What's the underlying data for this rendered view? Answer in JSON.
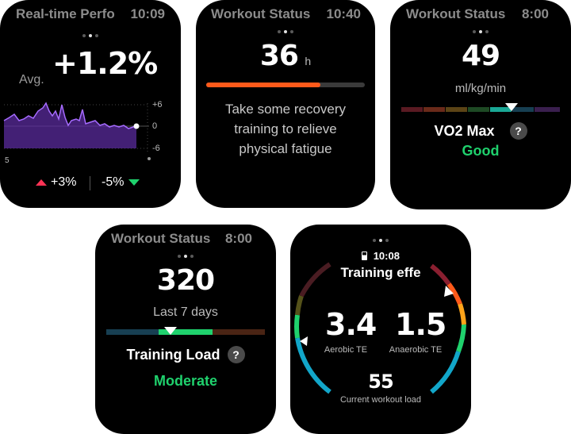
{
  "watch1": {
    "title": "Real-time Perfo",
    "time": "10:09",
    "value": "+1.2%",
    "avg_label": "Avg.",
    "y_ticks": [
      "+6",
      "0",
      "-6"
    ],
    "x_tick": "5",
    "up_value": "+3%",
    "down_value": "-5%",
    "colors": {
      "line": "#9f5cff",
      "up": "#ff3355",
      "down": "#1fd16d"
    }
  },
  "watch2": {
    "title": "Workout Status",
    "time": "10:40",
    "value": "36",
    "unit": "h",
    "progress_fraction": 0.72,
    "message_lines": [
      "Take some recovery",
      "training to relieve",
      "physical fatigue"
    ],
    "colors": {
      "fill": "#ff5a1a"
    }
  },
  "watch3": {
    "title": "Workout Status",
    "time": "8:00",
    "value": "49",
    "unit": "ml/kg/min",
    "label": "VO2 Max",
    "help": "?",
    "level": "Good",
    "colors": {
      "level": "#1fd16d"
    }
  },
  "watch4": {
    "title": "Workout Status",
    "time": "8:00",
    "value": "320",
    "period": "Last 7 days",
    "label": "Training Load",
    "help": "?",
    "level": "Moderate",
    "colors": {
      "level": "#1fd16d"
    }
  },
  "watch5": {
    "time": "10:08",
    "title": "Training effe",
    "aerobic_value": "3.4",
    "aerobic_label": "Aerobic TE",
    "anaerobic_value": "1.5",
    "anaerobic_label": "Anaerobic TE",
    "load_value": "55",
    "load_label": "Current workout load"
  }
}
